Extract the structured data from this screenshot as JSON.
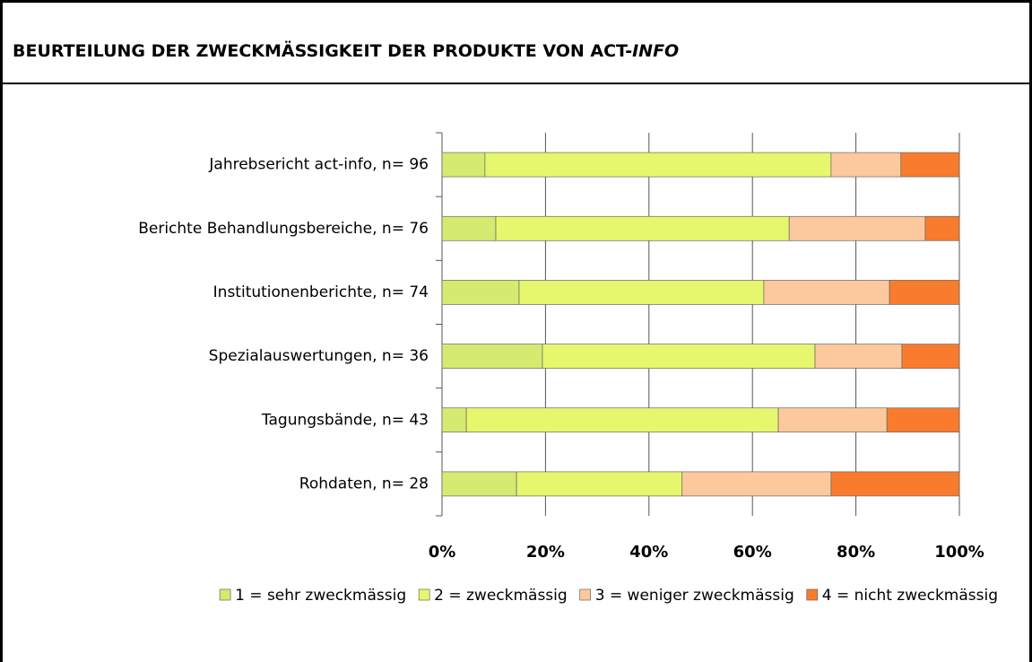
{
  "chart_data": {
    "type": "stacked_bar_horizontal",
    "title": [
      "BEURTEILUNG DER ZWECKMÄSSIGKEIT DER PRODUKTE VON ACT-",
      "INFO"
    ],
    "categories": [
      "Jahrebsericht act-info, n= 96",
      "Berichte Behandlungsbereiche, n= 76",
      "Institutionenberichte, n= 74",
      "Spezialauswertungen, n= 36",
      "Tagungsbände, n= 43",
      "Rohdaten, n= 28"
    ],
    "series": [
      {
        "name": "1 = sehr zweckmässig",
        "color": "#d5ea70",
        "values": [
          8.3,
          10.4,
          14.9,
          19.4,
          4.7,
          14.4
        ]
      },
      {
        "name": "2 = zweckmässig",
        "color": "#e6f76e",
        "values": [
          66.9,
          56.7,
          47.3,
          52.7,
          60.3,
          32.0
        ]
      },
      {
        "name": "3 = weniger zweckmässig",
        "color": "#fcc89d",
        "values": [
          13.5,
          26.3,
          24.3,
          16.8,
          21.0,
          28.8
        ]
      },
      {
        "name": "4 = nicht zweckmässig",
        "color": "#f97b2d",
        "values": [
          11.3,
          6.6,
          13.5,
          11.1,
          14.0,
          24.8
        ]
      }
    ],
    "xlim": [
      0,
      100
    ],
    "xticks": [
      {
        "value": 0,
        "label": "0%"
      },
      {
        "value": 20,
        "label": "20%"
      },
      {
        "value": 40,
        "label": "40%"
      },
      {
        "value": 60,
        "label": "60%"
      },
      {
        "value": 80,
        "label": "80%"
      },
      {
        "value": 100,
        "label": "100%"
      }
    ],
    "grid": true,
    "legend": "bottom"
  }
}
